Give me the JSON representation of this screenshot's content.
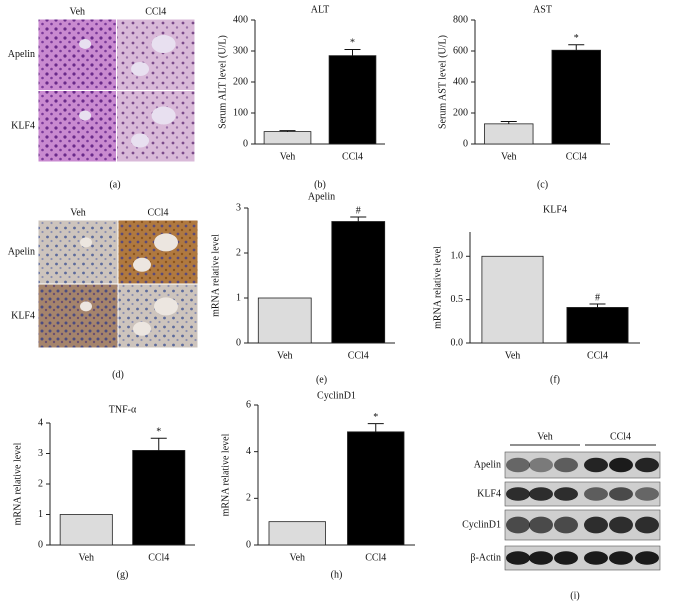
{
  "chart_data": [
    {
      "type": "bar",
      "title": "ALT",
      "panel_label": "(b)",
      "y_label": "Serum ALT level (U/L)",
      "categories": [
        "Veh",
        "CCl4"
      ],
      "values": [
        40,
        285
      ],
      "errors": [
        3,
        20
      ],
      "annotations": [
        null,
        "*"
      ],
      "colors": [
        "#dcdcdc",
        "#000000"
      ],
      "ylim": [
        0,
        400
      ],
      "yticks": [
        0,
        100,
        200,
        300,
        400
      ]
    },
    {
      "type": "bar",
      "title": "AST",
      "panel_label": "(c)",
      "y_label": "Serum AST level (U/L)",
      "categories": [
        "Veh",
        "CCl4"
      ],
      "values": [
        130,
        605
      ],
      "errors": [
        15,
        35
      ],
      "annotations": [
        null,
        "*"
      ],
      "colors": [
        "#dcdcdc",
        "#000000"
      ],
      "ylim": [
        0,
        800
      ],
      "yticks": [
        0,
        200,
        400,
        600,
        800
      ]
    },
    {
      "type": "bar",
      "title": "Apelin",
      "panel_label": "(e)",
      "y_label": "mRNA relative level",
      "categories": [
        "Veh",
        "CCl4"
      ],
      "values": [
        1,
        2.7
      ],
      "errors": [
        null,
        0.1
      ],
      "annotations": [
        null,
        "#"
      ],
      "colors": [
        "#dcdcdc",
        "#000000"
      ],
      "ylim": [
        0,
        3
      ],
      "yticks": [
        0,
        1,
        2,
        3
      ]
    },
    {
      "type": "bar",
      "title": "KLF4",
      "panel_label": "(f)",
      "y_label": "mRNA relative level",
      "categories": [
        "Veh",
        "CCl4"
      ],
      "values": [
        1,
        0.41
      ],
      "errors": [
        null,
        0.04
      ],
      "annotations": [
        null,
        "#"
      ],
      "colors": [
        "#dcdcdc",
        "#000000"
      ],
      "ylim": [
        0,
        1.28
      ],
      "yticks": [
        {
          "value": 0,
          "label": "0.0"
        },
        {
          "value": 0.5,
          "label": "0.5"
        },
        {
          "value": 1,
          "label": "1.0"
        }
      ]
    },
    {
      "type": "bar",
      "title": "TNF-α",
      "panel_label": "(g)",
      "y_label": "mRNA relative level",
      "categories": [
        "Veh",
        "CCl4"
      ],
      "values": [
        1,
        3.1
      ],
      "errors": [
        null,
        0.4
      ],
      "annotations": [
        null,
        "*"
      ],
      "colors": [
        "#dcdcdc",
        "#000000"
      ],
      "ylim": [
        0,
        4
      ],
      "yticks": [
        0,
        1,
        2,
        3,
        4
      ]
    },
    {
      "type": "bar",
      "title": "CyclinD1",
      "panel_label": "(h)",
      "y_label": "mRNA relative level",
      "categories": [
        "Veh",
        "CCl4"
      ],
      "values": [
        1,
        4.85
      ],
      "errors": [
        null,
        0.35
      ],
      "annotations": [
        null,
        "*"
      ],
      "colors": [
        "#dcdcdc",
        "#000000"
      ],
      "ylim": [
        0,
        6
      ],
      "yticks": [
        0,
        2,
        4,
        6
      ]
    }
  ],
  "images": [
    {
      "panel_label": "(a)",
      "columns": [
        "Veh",
        "CCl4"
      ],
      "rows": [
        "Apelin",
        "KLF4"
      ]
    },
    {
      "panel_label": "(d)",
      "columns": [
        "Veh",
        "CCl4"
      ],
      "rows": [
        "Apelin",
        "KLF4"
      ]
    }
  ],
  "blot": {
    "panel_label": "(i)",
    "groups": [
      "Veh",
      "CCl4"
    ],
    "rows": [
      "Apelin",
      "KLF4",
      "CyclinD1",
      "β-Actin"
    ]
  }
}
